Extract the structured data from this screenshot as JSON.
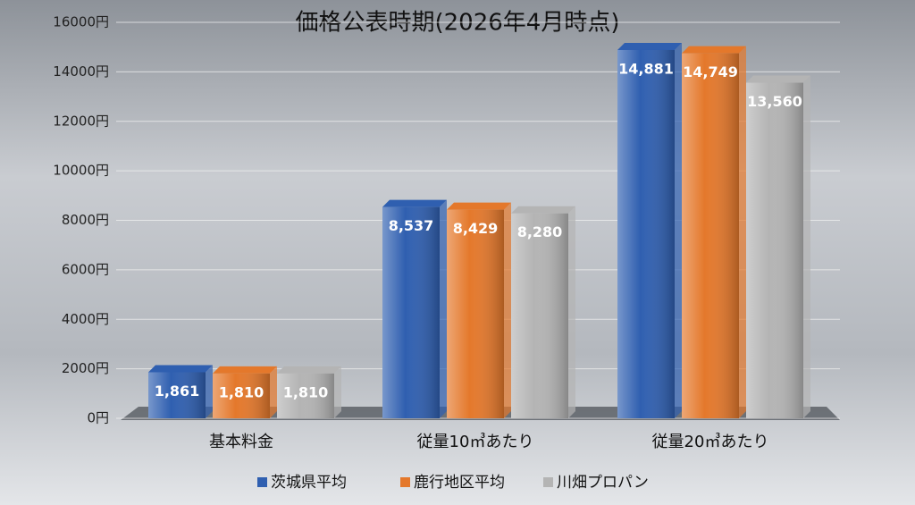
{
  "chart_data": {
    "type": "bar",
    "title": "価格公表時期(2026年4月時点)",
    "categories": [
      "基本料金",
      "従量10㎥あたり",
      "従量20㎥あたり"
    ],
    "series": [
      {
        "name": "茨城県平均",
        "color": "#2f5fb0",
        "values": [
          1861,
          8537,
          14881
        ],
        "value_labels": [
          "1,861",
          "8,537",
          "14,881"
        ]
      },
      {
        "name": "鹿行地区平均",
        "color": "#e4782b",
        "values": [
          1810,
          8429,
          14749
        ],
        "value_labels": [
          "1,810",
          "8,429",
          "14,749"
        ]
      },
      {
        "name": "川畑プロパン",
        "color": "#b4b4b4",
        "values": [
          1810,
          8280,
          13560
        ],
        "value_labels": [
          "1,810",
          "8,280",
          "13,560"
        ]
      }
    ],
    "ylim": [
      0,
      16000
    ],
    "yticks": [
      {
        "value": 0,
        "label": "0円"
      },
      {
        "value": 2000,
        "label": "2000円"
      },
      {
        "value": 4000,
        "label": "4000円"
      },
      {
        "value": 6000,
        "label": "6000円"
      },
      {
        "value": 8000,
        "label": "8000円"
      },
      {
        "value": 10000,
        "label": "10000円"
      },
      {
        "value": 12000,
        "label": "12000円"
      },
      {
        "value": 14000,
        "label": "14000円"
      },
      {
        "value": 16000,
        "label": "16000円"
      }
    ],
    "grid": true,
    "legend": "bottom"
  }
}
